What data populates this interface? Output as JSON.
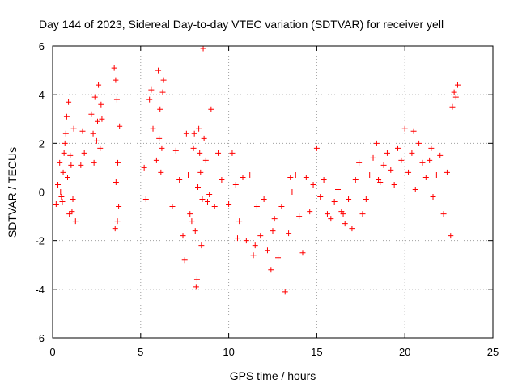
{
  "chart_data": {
    "type": "scatter",
    "title": "Day 144 of 2023, Sidereal Day-to-day VTEC variation (SDTVAR) for receiver yell",
    "xlabel": "GPS time / hours",
    "ylabel": "SDTVAR / TECUs",
    "xlim": [
      0,
      25
    ],
    "ylim": [
      -6,
      6
    ],
    "xticks": [
      0,
      5,
      10,
      15,
      20,
      25
    ],
    "yticks": [
      -6,
      -4,
      -2,
      0,
      2,
      4,
      6
    ],
    "grid": true,
    "marker": "+",
    "color": "#ff0000",
    "series": [
      {
        "name": "SDTVAR",
        "x": [
          0.2,
          0.3,
          0.4,
          0.5,
          0.6,
          0.7,
          0.8,
          0.9,
          1.0,
          1.1,
          1.2,
          1.3,
          0.45,
          0.55,
          0.65,
          0.75,
          0.85,
          0.95,
          1.05,
          1.15,
          1.6,
          1.7,
          1.8,
          2.2,
          2.3,
          2.4,
          2.5,
          2.6,
          2.7,
          2.8,
          2.35,
          2.55,
          2.75,
          3.5,
          3.55,
          3.6,
          3.65,
          3.7,
          3.75,
          3.8,
          3.58,
          3.68,
          5.2,
          5.3,
          5.5,
          5.6,
          5.7,
          5.9,
          6.0,
          6.1,
          6.2,
          6.3,
          6.05,
          6.15,
          6.25,
          6.8,
          7.0,
          7.2,
          7.4,
          7.6,
          7.8,
          8.0,
          8.1,
          8.2,
          8.3,
          8.4,
          8.5,
          8.6,
          8.7,
          8.8,
          7.5,
          7.7,
          7.9,
          8.05,
          8.15,
          8.35,
          8.55,
          8.9,
          9.0,
          9.2,
          9.4,
          9.6,
          10.0,
          10.2,
          10.4,
          10.6,
          10.8,
          11.0,
          11.2,
          11.4,
          11.6,
          11.8,
          12.0,
          12.2,
          12.4,
          12.6,
          12.8,
          13.0,
          13.2,
          13.4,
          13.6,
          13.8,
          14.0,
          14.2,
          14.4,
          14.6,
          14.8,
          15.0,
          15.2,
          15.4,
          15.6,
          15.8,
          16.0,
          16.2,
          16.4,
          16.6,
          16.8,
          17.0,
          17.2,
          17.4,
          17.6,
          17.8,
          18.0,
          18.2,
          18.4,
          18.6,
          18.8,
          19.0,
          19.2,
          19.4,
          19.6,
          19.8,
          20.0,
          20.2,
          20.4,
          20.6,
          20.8,
          21.0,
          21.2,
          21.4,
          21.6,
          21.8,
          22.0,
          22.2,
          22.4,
          22.6,
          22.8,
          22.7,
          22.9,
          23.0,
          10.5,
          11.5,
          12.5,
          13.5,
          16.5,
          18.5,
          20.5,
          21.5,
          8.45,
          8.25
        ],
        "y": [
          -0.5,
          0.3,
          1.2,
          -0.2,
          0.8,
          2.0,
          3.1,
          3.7,
          1.5,
          -0.8,
          2.6,
          -1.2,
          0.0,
          -0.4,
          1.6,
          2.4,
          0.6,
          -0.9,
          1.1,
          -0.3,
          1.1,
          2.5,
          1.6,
          3.2,
          2.4,
          3.9,
          2.1,
          4.4,
          1.8,
          3.0,
          1.2,
          2.9,
          3.6,
          5.1,
          -1.5,
          0.4,
          3.8,
          1.2,
          -0.6,
          2.7,
          4.6,
          -1.2,
          1.0,
          -0.3,
          3.8,
          4.2,
          2.6,
          1.3,
          5.0,
          3.4,
          1.8,
          4.6,
          2.2,
          0.8,
          4.1,
          -0.6,
          1.7,
          0.5,
          -1.8,
          2.4,
          -0.9,
          1.8,
          -1.6,
          -3.6,
          2.6,
          0.8,
          -0.3,
          2.2,
          1.3,
          -0.4,
          -2.8,
          0.7,
          -1.2,
          2.4,
          -3.9,
          1.6,
          5.9,
          -0.1,
          3.4,
          -0.6,
          1.6,
          0.5,
          -0.5,
          1.6,
          0.3,
          -1.2,
          0.6,
          -2.0,
          0.7,
          -2.6,
          -0.6,
          -1.8,
          -0.3,
          -2.4,
          -3.2,
          -1.1,
          -2.7,
          -0.6,
          -4.1,
          -1.7,
          0.0,
          0.7,
          -1.0,
          -2.5,
          0.6,
          -0.8,
          0.3,
          1.8,
          -0.2,
          0.5,
          -0.9,
          -1.1,
          -0.4,
          0.1,
          -0.8,
          -1.3,
          -0.3,
          -1.5,
          0.5,
          1.2,
          -0.9,
          -0.3,
          0.7,
          1.4,
          2.0,
          0.4,
          1.1,
          1.6,
          0.9,
          0.3,
          1.8,
          1.3,
          2.6,
          0.8,
          1.6,
          0.1,
          2.0,
          1.2,
          0.6,
          1.3,
          -0.2,
          0.7,
          1.5,
          -0.9,
          0.8,
          -1.8,
          4.1,
          3.5,
          3.9,
          4.4,
          -1.9,
          -2.2,
          -1.6,
          0.6,
          -0.9,
          0.5,
          2.5,
          1.8,
          -2.2,
          0.2
        ]
      }
    ]
  }
}
